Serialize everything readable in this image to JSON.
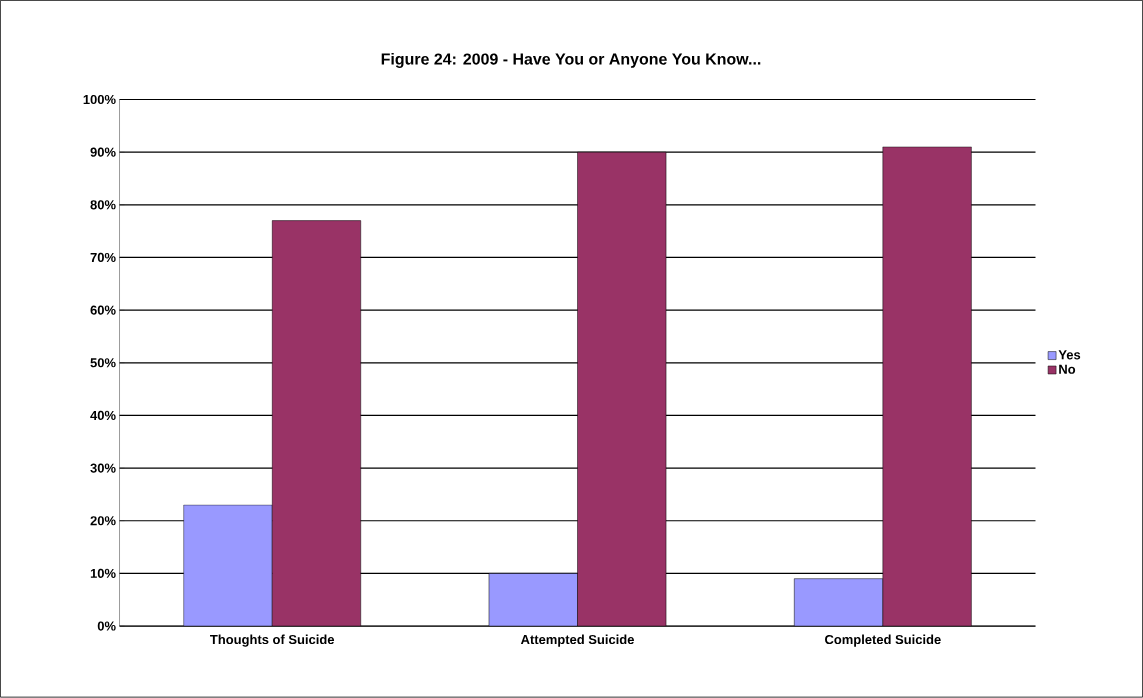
{
  "chart_data": {
    "type": "bar",
    "title": "Figure 24: 2009 - Have You or Anyone You Know...",
    "categories": [
      "Thoughts of Suicide",
      "Attempted Suicide",
      "Completed Suicide"
    ],
    "series": [
      {
        "name": "Yes",
        "color": "#9999ff",
        "values": [
          23,
          10,
          9
        ]
      },
      {
        "name": "No",
        "color": "#993366",
        "values": [
          77,
          90,
          91
        ]
      }
    ],
    "ylim": [
      0,
      100
    ],
    "yticks": [
      {
        "value": 0,
        "label": "0%"
      },
      {
        "value": 10,
        "label": "10%"
      },
      {
        "value": 20,
        "label": "20%"
      },
      {
        "value": 30,
        "label": "30%"
      },
      {
        "value": 40,
        "label": "40%"
      },
      {
        "value": 50,
        "label": "50%"
      },
      {
        "value": 60,
        "label": "60%"
      },
      {
        "value": 70,
        "label": "70%"
      },
      {
        "value": 80,
        "label": "80%"
      },
      {
        "value": 90,
        "label": "90%"
      },
      {
        "value": 100,
        "label": "100%"
      }
    ],
    "grid": "y",
    "legend": "right"
  }
}
